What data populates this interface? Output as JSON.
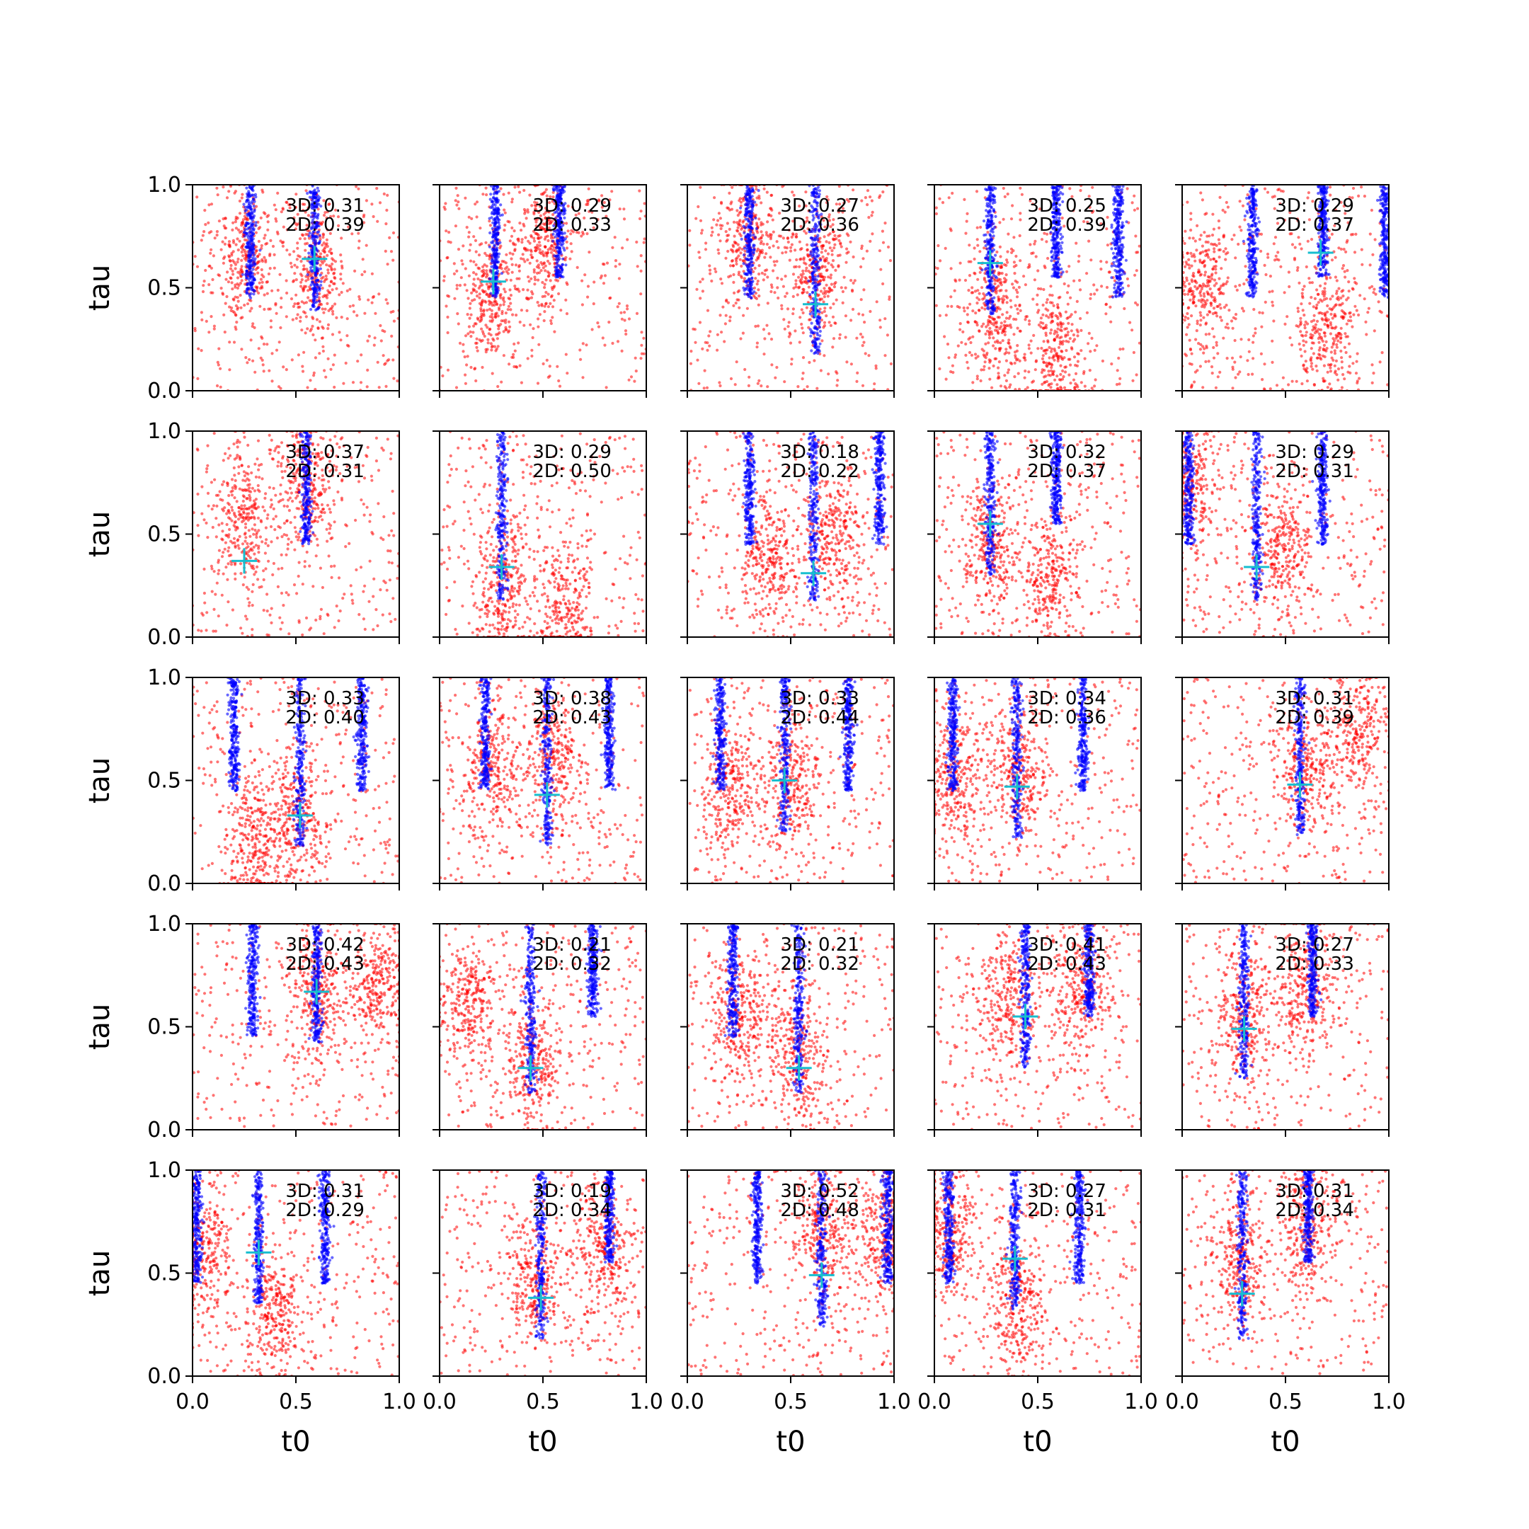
{
  "chart_data": {
    "type": "scatter",
    "layout": "5x5 grid of subplots",
    "xlabel": "t0",
    "ylabel": "tau",
    "xlim": [
      0,
      1
    ],
    "ylim": [
      0,
      1
    ],
    "xticks": [
      "0.0",
      "0.5",
      "1.0"
    ],
    "yticks": [
      "0.0",
      "0.5",
      "1.0"
    ],
    "grid": false,
    "colors": {
      "red_points": "#ff0000",
      "blue_points": "#0000ff",
      "marker": "#17becf",
      "axes": "#000000"
    },
    "panels": [
      {
        "annot3d": "3D: 0.31",
        "annot2d": "2D: 0.39",
        "marker": [
          0.59,
          0.64
        ],
        "blue_columns": [
          0.28,
          0.59
        ],
        "red_clusters": [
          [
            0.26,
            0.65
          ],
          [
            0.6,
            0.6
          ]
        ]
      },
      {
        "annot3d": "3D: 0.29",
        "annot2d": "2D: 0.33",
        "marker": [
          0.26,
          0.53
        ],
        "blue_columns": [
          0.27,
          0.58
        ],
        "red_clusters": [
          [
            0.25,
            0.45
          ],
          [
            0.5,
            0.7
          ]
        ]
      },
      {
        "annot3d": "3D: 0.27",
        "annot2d": "2D: 0.36",
        "marker": [
          0.62,
          0.42
        ],
        "blue_columns": [
          0.3,
          0.62
        ],
        "red_clusters": [
          [
            0.3,
            0.75
          ],
          [
            0.62,
            0.6
          ]
        ]
      },
      {
        "annot3d": "3D: 0.25",
        "annot2d": "2D: 0.39",
        "marker": [
          0.27,
          0.62
        ],
        "blue_columns": [
          0.27,
          0.59,
          0.89
        ],
        "red_clusters": [
          [
            0.3,
            0.4
          ],
          [
            0.6,
            0.2
          ]
        ]
      },
      {
        "annot3d": "3D: 0.29",
        "annot2d": "2D: 0.37",
        "marker": [
          0.67,
          0.67
        ],
        "blue_columns": [
          0.34,
          0.68,
          0.98
        ],
        "red_clusters": [
          [
            0.1,
            0.5
          ],
          [
            0.7,
            0.3
          ]
        ]
      },
      {
        "annot3d": "3D: 0.37",
        "annot2d": "2D: 0.31",
        "marker": [
          0.25,
          0.37
        ],
        "blue_columns": [
          0.55
        ],
        "red_clusters": [
          [
            0.25,
            0.55
          ],
          [
            0.55,
            0.75
          ]
        ]
      },
      {
        "annot3d": "3D: 0.29",
        "annot2d": "2D: 0.50",
        "marker": [
          0.3,
          0.34
        ],
        "blue_columns": [
          0.3
        ],
        "red_clusters": [
          [
            0.3,
            0.25
          ],
          [
            0.6,
            0.15
          ]
        ]
      },
      {
        "annot3d": "3D: 0.18",
        "annot2d": "2D: 0.22",
        "marker": [
          0.61,
          0.31
        ],
        "blue_columns": [
          0.3,
          0.61,
          0.93
        ],
        "red_clusters": [
          [
            0.4,
            0.35
          ],
          [
            0.7,
            0.5
          ]
        ]
      },
      {
        "annot3d": "3D: 0.32",
        "annot2d": "2D: 0.37",
        "marker": [
          0.27,
          0.55
        ],
        "blue_columns": [
          0.27,
          0.59
        ],
        "red_clusters": [
          [
            0.27,
            0.45
          ],
          [
            0.55,
            0.3
          ]
        ]
      },
      {
        "annot3d": "3D: 0.29",
        "annot2d": "2D: 0.31",
        "marker": [
          0.36,
          0.34
        ],
        "blue_columns": [
          0.03,
          0.36,
          0.68
        ],
        "red_clusters": [
          [
            0.05,
            0.75
          ],
          [
            0.5,
            0.4
          ]
        ]
      },
      {
        "annot3d": "3D: 0.33",
        "annot2d": "2D: 0.40",
        "marker": [
          0.52,
          0.33
        ],
        "blue_columns": [
          0.2,
          0.52,
          0.82
        ],
        "red_clusters": [
          [
            0.5,
            0.3
          ],
          [
            0.3,
            0.2
          ]
        ]
      },
      {
        "annot3d": "3D: 0.38",
        "annot2d": "2D: 0.43",
        "marker": [
          0.52,
          0.43
        ],
        "blue_columns": [
          0.22,
          0.52,
          0.82
        ],
        "red_clusters": [
          [
            0.25,
            0.55
          ],
          [
            0.55,
            0.6
          ]
        ]
      },
      {
        "annot3d": "3D: 0.33",
        "annot2d": "2D: 0.44",
        "marker": [
          0.47,
          0.5
        ],
        "blue_columns": [
          0.16,
          0.47,
          0.78
        ],
        "red_clusters": [
          [
            0.2,
            0.45
          ],
          [
            0.5,
            0.5
          ]
        ]
      },
      {
        "annot3d": "3D: 0.34",
        "annot2d": "2D: 0.36",
        "marker": [
          0.4,
          0.47
        ],
        "blue_columns": [
          0.09,
          0.4,
          0.72
        ],
        "red_clusters": [
          [
            0.1,
            0.5
          ],
          [
            0.4,
            0.55
          ]
        ]
      },
      {
        "annot3d": "3D: 0.31",
        "annot2d": "2D: 0.39",
        "marker": [
          0.57,
          0.48
        ],
        "blue_columns": [
          0.57
        ],
        "red_clusters": [
          [
            0.6,
            0.55
          ],
          [
            0.85,
            0.7
          ]
        ]
      },
      {
        "annot3d": "3D: 0.42",
        "annot2d": "2D: 0.43",
        "marker": [
          0.6,
          0.67
        ],
        "blue_columns": [
          0.29,
          0.6
        ],
        "red_clusters": [
          [
            0.6,
            0.65
          ],
          [
            0.9,
            0.7
          ]
        ]
      },
      {
        "annot3d": "3D: 0.21",
        "annot2d": "2D: 0.32",
        "marker": [
          0.44,
          0.3
        ],
        "blue_columns": [
          0.44,
          0.74
        ],
        "red_clusters": [
          [
            0.15,
            0.6
          ],
          [
            0.45,
            0.3
          ]
        ]
      },
      {
        "annot3d": "3D: 0.21",
        "annot2d": "2D: 0.32",
        "marker": [
          0.54,
          0.3
        ],
        "blue_columns": [
          0.22,
          0.54
        ],
        "red_clusters": [
          [
            0.25,
            0.55
          ],
          [
            0.55,
            0.35
          ]
        ]
      },
      {
        "annot3d": "3D: 0.41",
        "annot2d": "2D: 0.43",
        "marker": [
          0.44,
          0.55
        ],
        "blue_columns": [
          0.44,
          0.75
        ],
        "red_clusters": [
          [
            0.35,
            0.65
          ],
          [
            0.7,
            0.7
          ]
        ]
      },
      {
        "annot3d": "3D: 0.27",
        "annot2d": "2D: 0.33",
        "marker": [
          0.3,
          0.49
        ],
        "blue_columns": [
          0.3,
          0.63
        ],
        "red_clusters": [
          [
            0.3,
            0.55
          ],
          [
            0.6,
            0.7
          ]
        ]
      },
      {
        "annot3d": "3D: 0.31",
        "annot2d": "2D: 0.29",
        "marker": [
          0.32,
          0.6
        ],
        "blue_columns": [
          0.02,
          0.32,
          0.64
        ],
        "red_clusters": [
          [
            0.05,
            0.6
          ],
          [
            0.4,
            0.3
          ]
        ]
      },
      {
        "annot3d": "3D: 0.19",
        "annot2d": "2D: 0.34",
        "marker": [
          0.49,
          0.38
        ],
        "blue_columns": [
          0.49,
          0.82
        ],
        "red_clusters": [
          [
            0.45,
            0.45
          ],
          [
            0.8,
            0.6
          ]
        ]
      },
      {
        "annot3d": "3D: 0.52",
        "annot2d": "2D: 0.48",
        "marker": [
          0.65,
          0.49
        ],
        "blue_columns": [
          0.34,
          0.65,
          0.97
        ],
        "red_clusters": [
          [
            0.65,
            0.7
          ],
          [
            0.95,
            0.7
          ]
        ]
      },
      {
        "annot3d": "3D: 0.27",
        "annot2d": "2D: 0.31",
        "marker": [
          0.39,
          0.57
        ],
        "blue_columns": [
          0.07,
          0.39,
          0.7
        ],
        "red_clusters": [
          [
            0.08,
            0.7
          ],
          [
            0.4,
            0.35
          ]
        ]
      },
      {
        "annot3d": "3D: 0.31",
        "annot2d": "2D: 0.34",
        "marker": [
          0.29,
          0.4
        ],
        "blue_columns": [
          0.29,
          0.61
        ],
        "red_clusters": [
          [
            0.28,
            0.55
          ],
          [
            0.6,
            0.7
          ]
        ]
      }
    ]
  }
}
